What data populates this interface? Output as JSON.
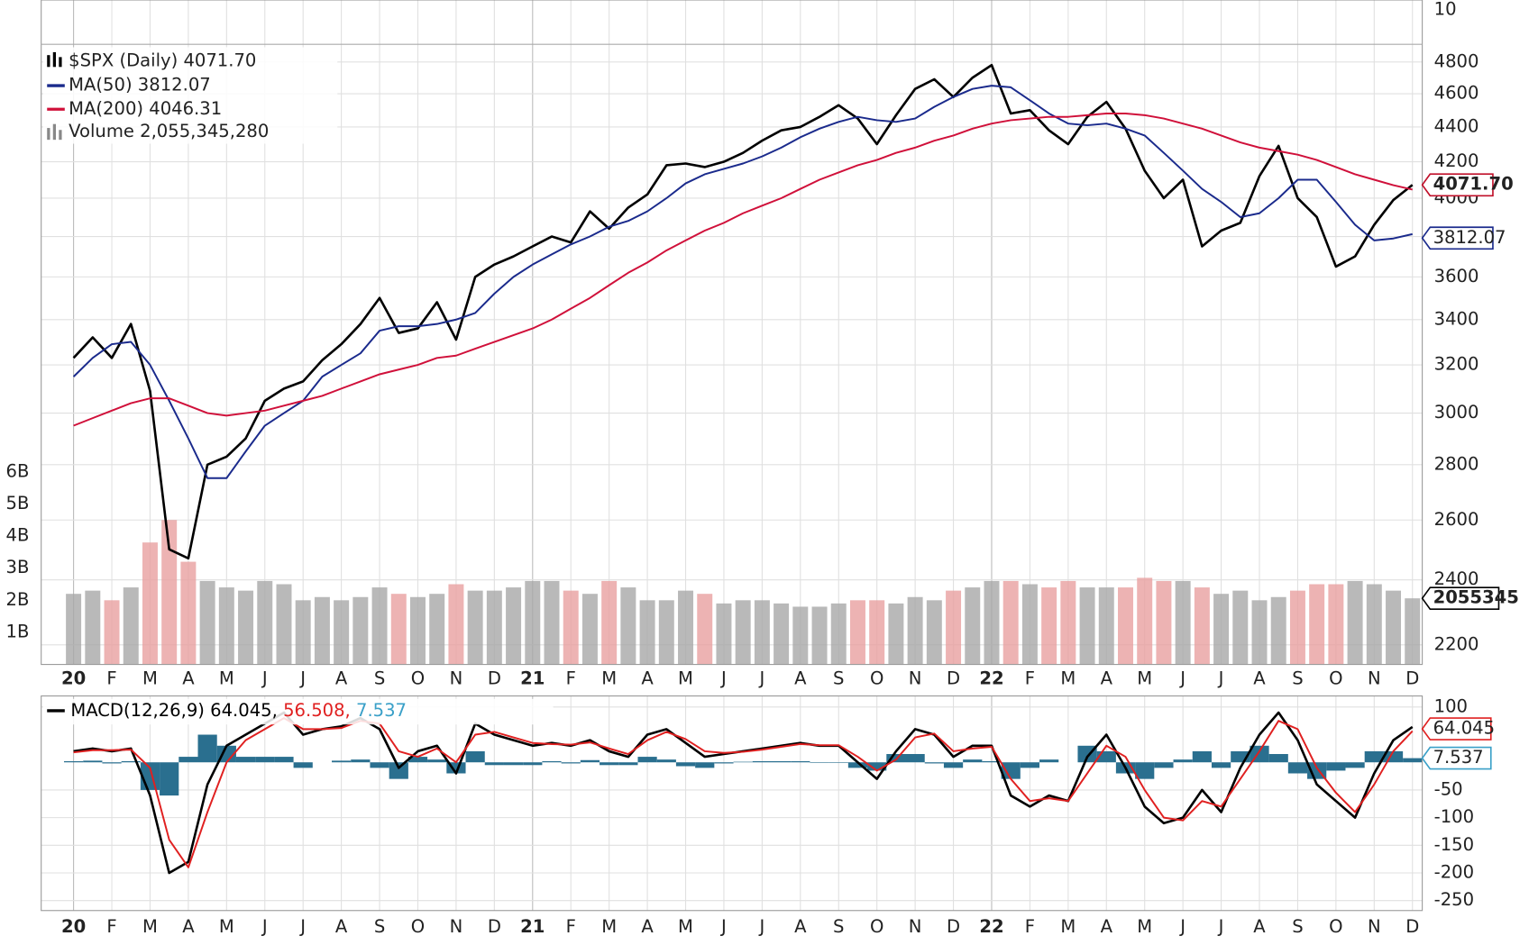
{
  "chart_data": [
    {
      "type": "line",
      "log_scale": true,
      "grid": true,
      "top_label": "10",
      "categories": [
        "20",
        null,
        "F",
        null,
        "M",
        null,
        "A",
        null,
        "M",
        null,
        "J",
        null,
        "J",
        null,
        "A",
        null,
        "S",
        null,
        "O",
        null,
        "N",
        null,
        "D",
        null,
        "21",
        null,
        "F",
        null,
        "M",
        null,
        "A",
        null,
        "M",
        null,
        "J",
        null,
        "J",
        null,
        "A",
        null,
        "S",
        null,
        "O",
        null,
        "N",
        null,
        "D",
        null,
        "22",
        null,
        "F",
        null,
        "M",
        null,
        "A",
        null,
        "M",
        null,
        "J",
        null,
        "J",
        null,
        "A",
        null,
        "S",
        null,
        "O",
        null,
        "N",
        null,
        "D"
      ],
      "ylim": [
        2143,
        5215
      ],
      "yticks": [
        2200,
        2400,
        2600,
        2800,
        3000,
        3200,
        3400,
        3600,
        3800,
        4000,
        4200,
        4400,
        4600,
        4800
      ],
      "series": [
        {
          "name": "$SPX (Daily) 4071.70",
          "color": "#000000",
          "last_label": "4071.70",
          "badge_color": "#c0102a",
          "values": [
            3230,
            3320,
            3230,
            3380,
            3090,
            2500,
            2470,
            2800,
            2830,
            2900,
            3050,
            3100,
            3130,
            3220,
            3290,
            3380,
            3500,
            3340,
            3360,
            3480,
            3310,
            3600,
            3660,
            3700,
            3750,
            3800,
            3770,
            3930,
            3840,
            3950,
            4020,
            4180,
            4190,
            4170,
            4200,
            4250,
            4320,
            4380,
            4400,
            4460,
            4530,
            4450,
            4300,
            4470,
            4630,
            4690,
            4580,
            4700,
            4780,
            4480,
            4500,
            4380,
            4300,
            4460,
            4550,
            4390,
            4150,
            4000,
            4100,
            3750,
            3830,
            3870,
            4120,
            4290,
            4000,
            3900,
            3650,
            3700,
            3860,
            3990,
            4071.7
          ]
        },
        {
          "name": "MA(50) 3812.07",
          "color": "#1a2a8c",
          "last_label": "3812.07",
          "values": [
            3150,
            3230,
            3290,
            3300,
            3200,
            3050,
            2900,
            2750,
            2750,
            2850,
            2950,
            3000,
            3050,
            3150,
            3200,
            3250,
            3350,
            3370,
            3370,
            3380,
            3400,
            3430,
            3520,
            3600,
            3660,
            3710,
            3760,
            3800,
            3850,
            3880,
            3930,
            4000,
            4080,
            4130,
            4160,
            4190,
            4230,
            4280,
            4340,
            4390,
            4430,
            4460,
            4440,
            4430,
            4450,
            4520,
            4580,
            4630,
            4650,
            4640,
            4560,
            4480,
            4420,
            4410,
            4420,
            4390,
            4350,
            4250,
            4150,
            4050,
            3980,
            3900,
            3920,
            4000,
            4100,
            4100,
            3980,
            3860,
            3780,
            3790,
            3812.07
          ]
        },
        {
          "name": "MA(200) 4046.31",
          "color": "#d0103a",
          "values": [
            2950,
            2980,
            3010,
            3040,
            3060,
            3060,
            3030,
            3000,
            2990,
            3000,
            3010,
            3030,
            3050,
            3070,
            3100,
            3130,
            3160,
            3180,
            3200,
            3230,
            3240,
            3270,
            3300,
            3330,
            3360,
            3400,
            3450,
            3500,
            3560,
            3620,
            3670,
            3730,
            3780,
            3830,
            3870,
            3920,
            3960,
            4000,
            4050,
            4100,
            4140,
            4180,
            4210,
            4250,
            4280,
            4320,
            4350,
            4390,
            4420,
            4440,
            4450,
            4460,
            4460,
            4470,
            4480,
            4480,
            4470,
            4450,
            4420,
            4390,
            4350,
            4310,
            4280,
            4260,
            4240,
            4210,
            4170,
            4130,
            4100,
            4070,
            4046.31
          ]
        }
      ],
      "volume": {
        "name": "Volume 2,055,345,280",
        "up_color": "#a8a8a8",
        "down_color": "#e8a0a0",
        "last_label": "2055345",
        "ylim": [
          0,
          20.7
        ],
        "yticks": [
          {
            "value": 1,
            "label": "1B"
          },
          {
            "value": 2,
            "label": "2B"
          },
          {
            "value": 3,
            "label": "3B"
          },
          {
            "value": 4,
            "label": "4B"
          },
          {
            "value": 5,
            "label": "5B"
          },
          {
            "value": 6,
            "label": "6B"
          }
        ],
        "values": [
          2.2,
          2.3,
          2.0,
          2.4,
          3.8,
          4.5,
          3.2,
          2.6,
          2.4,
          2.3,
          2.6,
          2.5,
          2.0,
          2.1,
          2.0,
          2.1,
          2.4,
          2.2,
          2.1,
          2.2,
          2.5,
          2.3,
          2.3,
          2.4,
          2.6,
          2.6,
          2.3,
          2.2,
          2.6,
          2.4,
          2.0,
          2.0,
          2.3,
          2.2,
          1.9,
          2.0,
          2.0,
          1.9,
          1.8,
          1.8,
          1.9,
          2.0,
          2.0,
          1.9,
          2.1,
          2.0,
          2.3,
          2.4,
          2.6,
          2.6,
          2.5,
          2.4,
          2.6,
          2.4,
          2.4,
          2.4,
          2.7,
          2.6,
          2.6,
          2.4,
          2.2,
          2.3,
          2.0,
          2.1,
          2.3,
          2.5,
          2.5,
          2.6,
          2.5,
          2.3,
          2.06
        ]
      }
    },
    {
      "type": "line",
      "grid": true,
      "categories": [
        "20",
        null,
        "F",
        null,
        "M",
        null,
        "A",
        null,
        "M",
        null,
        "J",
        null,
        "J",
        null,
        "A",
        null,
        "S",
        null,
        "O",
        null,
        "N",
        null,
        "D",
        null,
        "21",
        null,
        "F",
        null,
        "M",
        null,
        "A",
        null,
        "M",
        null,
        "J",
        null,
        "J",
        null,
        "A",
        null,
        "S",
        null,
        "O",
        null,
        "N",
        null,
        "D",
        null,
        "22",
        null,
        "F",
        null,
        "M",
        null,
        "A",
        null,
        "M",
        null,
        "J",
        null,
        "J",
        null,
        "A",
        null,
        "S",
        null,
        "O",
        null,
        "N",
        null,
        "D"
      ],
      "ylim": [
        -268,
        120
      ],
      "yticks": [
        100,
        -50,
        -100,
        -150,
        -200,
        -250
      ],
      "series": [
        {
          "name": "MACD(12,26,9) 64.045,",
          "color": "#000000",
          "last_label": "64.045",
          "values": [
            20,
            25,
            20,
            25,
            -60,
            -200,
            -180,
            -40,
            30,
            50,
            70,
            90,
            50,
            60,
            65,
            80,
            60,
            -10,
            20,
            30,
            -20,
            70,
            50,
            40,
            30,
            35,
            30,
            40,
            20,
            10,
            50,
            60,
            35,
            10,
            15,
            20,
            25,
            30,
            35,
            30,
            30,
            0,
            -30,
            20,
            60,
            50,
            10,
            30,
            30,
            -60,
            -80,
            -60,
            -70,
            10,
            50,
            -10,
            -80,
            -110,
            -100,
            -50,
            -90,
            -10,
            50,
            90,
            40,
            -40,
            -70,
            -100,
            -20,
            40,
            64.045
          ]
        },
        {
          "name": "56.508,",
          "color": "#e02020",
          "values": [
            18,
            22,
            22,
            23,
            -10,
            -140,
            -190,
            -90,
            0,
            40,
            60,
            80,
            60,
            60,
            62,
            75,
            70,
            20,
            10,
            25,
            0,
            50,
            55,
            45,
            35,
            33,
            32,
            36,
            25,
            15,
            40,
            55,
            42,
            20,
            17,
            19,
            23,
            28,
            33,
            31,
            31,
            10,
            -15,
            5,
            45,
            52,
            20,
            25,
            28,
            -30,
            -70,
            -65,
            -70,
            -20,
            30,
            10,
            -50,
            -100,
            -105,
            -70,
            -80,
            -30,
            20,
            75,
            60,
            -10,
            -55,
            -90,
            -40,
            20,
            56.508
          ]
        },
        {
          "name": "7.537",
          "type": "bar",
          "color": "#2a6f8f",
          "legend_color": "#3aa0c8",
          "last_label": "7.537",
          "values": [
            2,
            3,
            -2,
            2,
            -50,
            -60,
            10,
            50,
            30,
            10,
            10,
            10,
            -10,
            0,
            3,
            5,
            -10,
            -30,
            10,
            5,
            -20,
            20,
            -5,
            -5,
            -5,
            2,
            -2,
            4,
            -5,
            -5,
            10,
            5,
            -7,
            -10,
            -2,
            1,
            2,
            2,
            2,
            -1,
            -1,
            -10,
            -15,
            15,
            15,
            -2,
            -10,
            5,
            2,
            -30,
            -10,
            5,
            0,
            30,
            20,
            -20,
            -30,
            -10,
            5,
            20,
            -10,
            20,
            30,
            15,
            -20,
            -30,
            -15,
            -10,
            20,
            20,
            7.537
          ]
        }
      ]
    }
  ]
}
